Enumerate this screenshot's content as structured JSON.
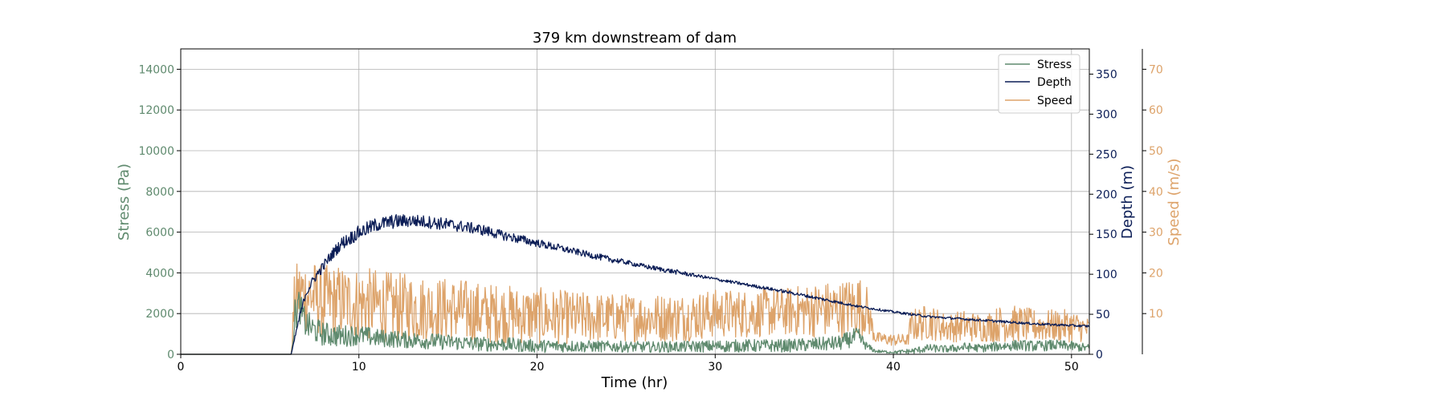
{
  "chart_data": {
    "type": "line",
    "title": "379 km downstream of dam",
    "xlabel": "Time (hr)",
    "xlim": [
      0,
      51
    ],
    "xticks": [
      0,
      10,
      20,
      30,
      40,
      50
    ],
    "grid": true,
    "legend": {
      "placement": "top-right",
      "entries": [
        "Stress",
        "Depth",
        "Speed"
      ]
    },
    "axes": {
      "stress": {
        "label": "Stress (Pa)",
        "ylim": [
          0,
          15000
        ],
        "ticks": [
          0,
          2000,
          4000,
          6000,
          8000,
          10000,
          12000,
          14000
        ],
        "color": "#5f8a6e",
        "side": "left"
      },
      "depth": {
        "label": "Depth (m)",
        "ylim": [
          0,
          381.5
        ],
        "ticks": [
          0,
          50,
          100,
          150,
          200,
          250,
          300,
          350
        ],
        "color": "#0b1d56",
        "side": "right"
      },
      "speed": {
        "label": "Speed (m/s)",
        "ylim": [
          0,
          75
        ],
        "ticks": [
          10,
          20,
          30,
          40,
          50,
          60,
          70
        ],
        "color": "#dda36a",
        "side": "right-offset"
      }
    },
    "series": [
      {
        "name": "Stress",
        "axis": "stress",
        "color": "#5f8a6e",
        "x": [
          0,
          6.2,
          6.4,
          6.6,
          7,
          7.5,
          8,
          9,
          10,
          11,
          12,
          13,
          14,
          15,
          16,
          17,
          18,
          19,
          20,
          22,
          24,
          26,
          28,
          30,
          32,
          34,
          36,
          37,
          38,
          38.5,
          39,
          40,
          41,
          42,
          43,
          44,
          45,
          46,
          47,
          48,
          49,
          50,
          51
        ],
        "y": [
          0,
          0,
          1800,
          2500,
          1500,
          1200,
          1000,
          900,
          950,
          800,
          750,
          700,
          650,
          600,
          550,
          500,
          500,
          450,
          400,
          400,
          380,
          360,
          370,
          400,
          420,
          420,
          500,
          550,
          900,
          400,
          150,
          100,
          150,
          300,
          250,
          350,
          300,
          400,
          450,
          400,
          450,
          400,
          300
        ],
        "amplitude": [
          0,
          0,
          900,
          800,
          700,
          650,
          600,
          550,
          500,
          450,
          430,
          420,
          400,
          390,
          370,
          360,
          350,
          340,
          320,
          300,
          280,
          270,
          280,
          300,
          320,
          320,
          350,
          380,
          450,
          200,
          80,
          60,
          150,
          200,
          180,
          230,
          200,
          250,
          270,
          260,
          270,
          250,
          200
        ]
      },
      {
        "name": "Depth",
        "axis": "depth",
        "color": "#0b1d56",
        "x": [
          0,
          6.2,
          6.6,
          7,
          7.5,
          8,
          8.5,
          9,
          10,
          11,
          12,
          13,
          14,
          15,
          16,
          17,
          18,
          19,
          20,
          21,
          22,
          23,
          24,
          25,
          26,
          27,
          28,
          29,
          30,
          32,
          34,
          36,
          38,
          40,
          42,
          44,
          46,
          48,
          50,
          51
        ],
        "y": [
          0,
          0,
          40,
          75,
          95,
          110,
          125,
          138,
          152,
          162,
          166,
          167,
          165,
          162,
          159,
          155,
          149,
          144,
          139,
          134,
          129,
          124,
          119,
          115,
          110,
          106,
          102,
          98,
          94,
          86,
          78,
          69,
          60,
          53,
          47,
          44,
          41,
          38,
          36,
          35
        ],
        "amplitude": [
          0,
          0,
          4,
          5,
          6,
          7,
          7,
          8,
          9,
          9,
          9,
          8,
          8,
          8,
          7,
          7,
          6,
          6,
          5,
          5,
          4,
          4,
          4,
          3,
          3,
          3,
          3,
          2,
          2,
          2,
          2,
          2,
          1.5,
          1.5,
          1.5,
          1.5,
          1.5,
          1.5,
          1.5,
          1.5
        ]
      },
      {
        "name": "Speed",
        "axis": "speed",
        "color": "#dda36a",
        "x": [
          0,
          6.2,
          6.4,
          6.8,
          7.5,
          8,
          9,
          10,
          11,
          12,
          13,
          14,
          15,
          16,
          17,
          18,
          19,
          20,
          22,
          24,
          26,
          28,
          30,
          32,
          34,
          36,
          37,
          38,
          38.5,
          39,
          40,
          40.8,
          41,
          42,
          43,
          44,
          45,
          46,
          47,
          48,
          49,
          50,
          51
        ],
        "y": [
          0,
          0,
          14,
          15,
          14,
          13,
          13,
          12.5,
          12,
          11.5,
          11.5,
          11,
          11,
          10.5,
          10,
          10,
          9.5,
          9.5,
          9,
          9,
          9,
          9,
          10,
          10,
          10.5,
          11,
          11,
          12,
          11,
          4,
          3.5,
          3.5,
          7,
          8,
          6.5,
          7,
          6.5,
          7.5,
          7.5,
          7,
          7,
          7,
          6
        ],
        "amplitude": [
          0,
          0,
          8,
          9,
          9,
          9,
          9,
          9,
          9,
          8.5,
          8.5,
          8,
          8,
          8,
          7.5,
          7.5,
          7,
          7,
          6.5,
          6,
          6,
          6,
          6,
          6,
          6,
          7,
          7,
          8,
          6,
          1.5,
          1.5,
          1.5,
          4,
          4.5,
          3.5,
          4,
          3.5,
          4.5,
          4.5,
          4,
          4,
          4,
          3
        ]
      }
    ]
  }
}
